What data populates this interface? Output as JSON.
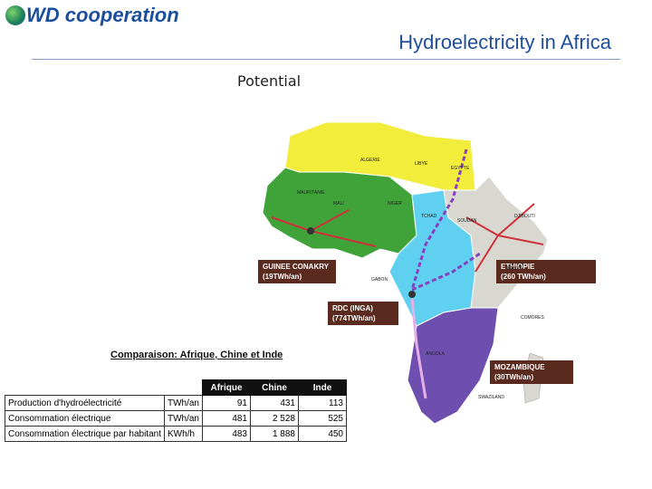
{
  "header": {
    "logo": "WD cooperation",
    "title": "Hydroelectricity in Africa",
    "subtitle": "Potential"
  },
  "map": {
    "callouts": [
      {
        "name": "GUINEE CONAKRY",
        "value": "(19TWh/an)"
      },
      {
        "name": "ETHIOPIE",
        "value": "(260 TWh/an)"
      },
      {
        "name": "RDC (INGA)",
        "value": "(774TWh/an)"
      },
      {
        "name": "MOZAMBIQUE",
        "value": "(30TWh/an)"
      }
    ],
    "labels": [
      "ALGERIE",
      "LIBYE",
      "EGYPTE",
      "MAURITANIE",
      "MALI",
      "NIGER",
      "TCHAD",
      "SOUDAN",
      "DJIBOUTI",
      "KENYA",
      "GABON",
      "ANGOLA",
      "COMORES",
      "SWAZILAND"
    ]
  },
  "table": {
    "title": "Comparaison: Afrique, Chine et Inde",
    "columns": [
      "Afrique",
      "Chine",
      "Inde"
    ],
    "rows": [
      [
        "Production d'hydroélectricité",
        "TWh/an",
        "91",
        "431",
        "113"
      ],
      [
        "Consommation électrique",
        "TWh/an",
        "481",
        "2 528",
        "525"
      ],
      [
        "Consommation électrique par habitant",
        "KWh/h",
        "483",
        "1 888",
        "450"
      ]
    ]
  }
}
